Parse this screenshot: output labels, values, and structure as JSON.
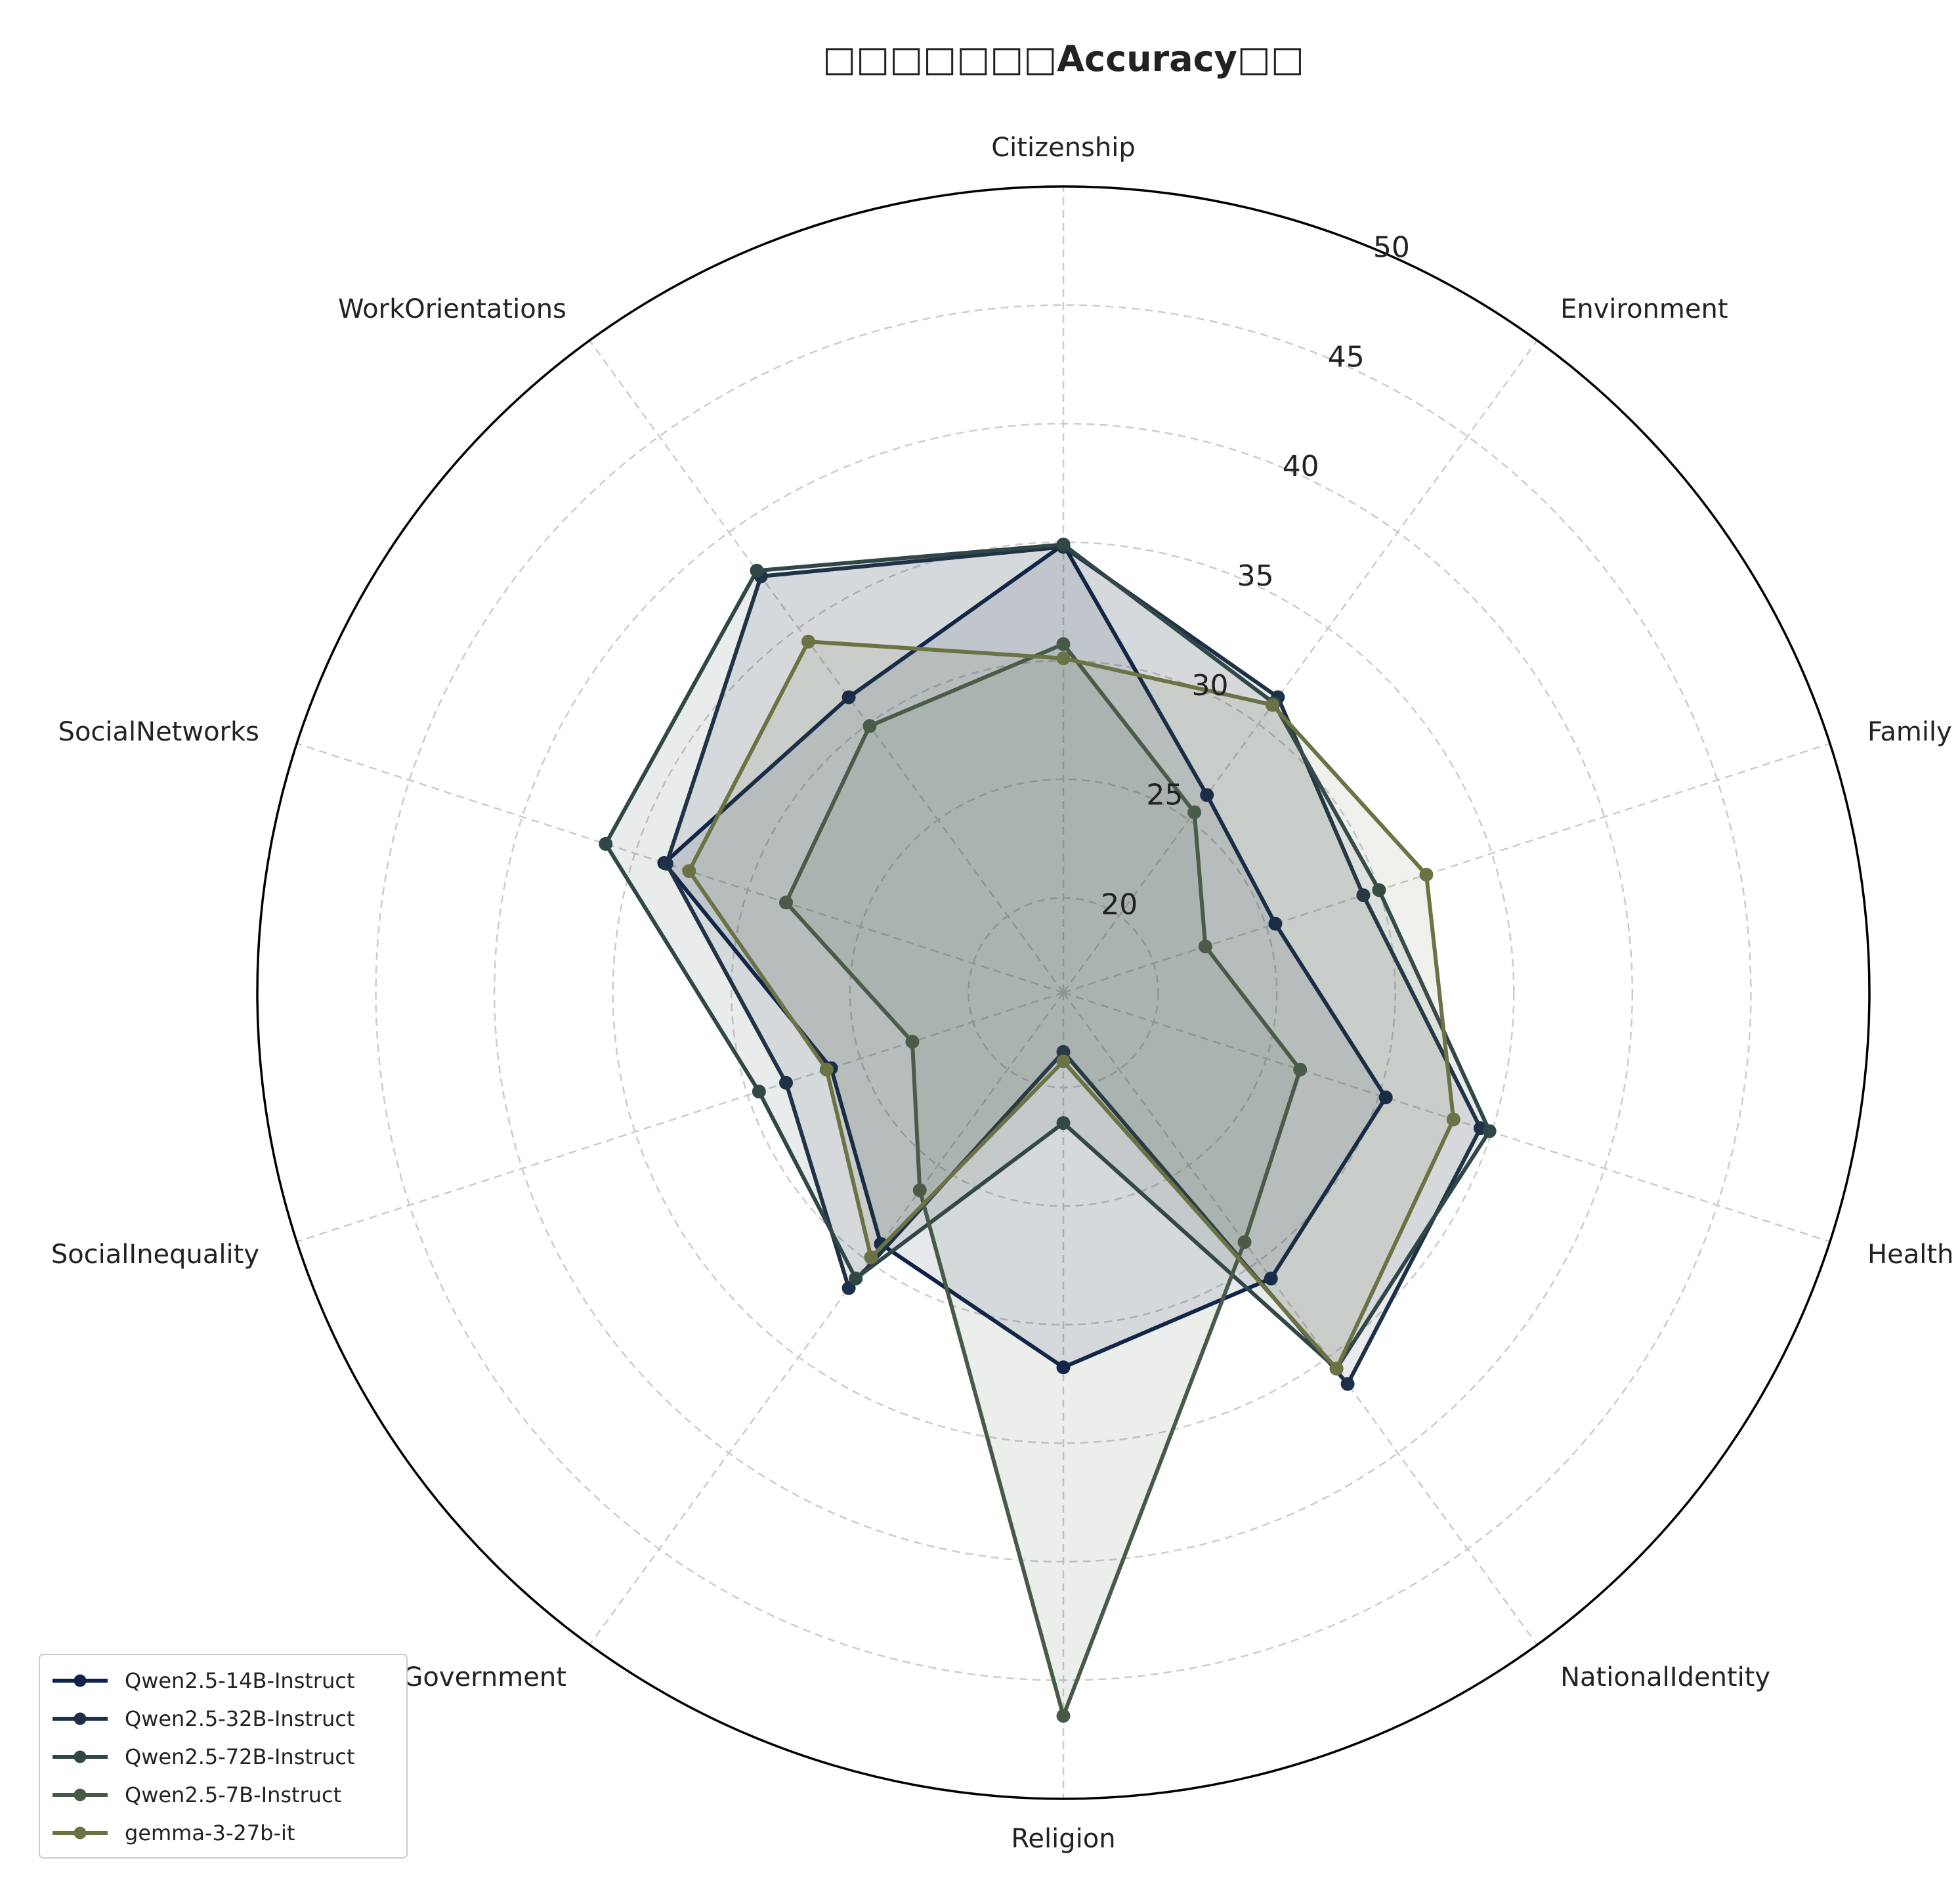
{
  "chart_data": {
    "type": "radar",
    "title": "□□□□□□□Accuracy□□",
    "categories": [
      "Citizenship",
      "Environment",
      "Family",
      "Health",
      "NationalIdentity",
      "Religion",
      "RoleofGovernment",
      "SocialInequality",
      "SocialNetworks",
      "WorkOrientations"
    ],
    "rlim": [
      16,
      50
    ],
    "rticks": [
      20,
      25,
      30,
      35,
      40,
      45,
      50
    ],
    "grid": true,
    "legend_position": "lower-left",
    "series": [
      {
        "name": "Qwen2.5-14B-Instruct",
        "color": "#0d2149",
        "values": [
          34.9,
          26.3,
          25.4,
          30.3,
          30.9,
          31.8,
          29.1,
          26.3,
          33.7,
          31.4
        ]
      },
      {
        "name": "Qwen2.5-32B-Instruct",
        "color": "#1d3048",
        "values": [
          34.8,
          31.4,
          29.3,
          34.5,
          36.4,
          18.5,
          31.4,
          28.3,
          33.6,
          37.7
        ]
      },
      {
        "name": "Qwen2.5-72B-Instruct",
        "color": "#314747",
        "values": [
          34.9,
          31.1,
          30.0,
          34.9,
          35.6,
          21.5,
          30.9,
          29.5,
          36.3,
          38.0
        ]
      },
      {
        "name": "Qwen2.5-7B-Instruct",
        "color": "#475a48",
        "values": [
          30.7,
          25.4,
          22.3,
          26.5,
          29.0,
          46.5,
          26.3,
          22.7,
          28.3,
          29.9
        ]
      },
      {
        "name": "gemma-3-27b-it",
        "color": "#6b7243",
        "values": [
          30.1,
          31.0,
          32.1,
          33.3,
          35.6,
          18.9,
          29.8,
          26.5,
          32.6,
          34.3
        ]
      }
    ]
  }
}
